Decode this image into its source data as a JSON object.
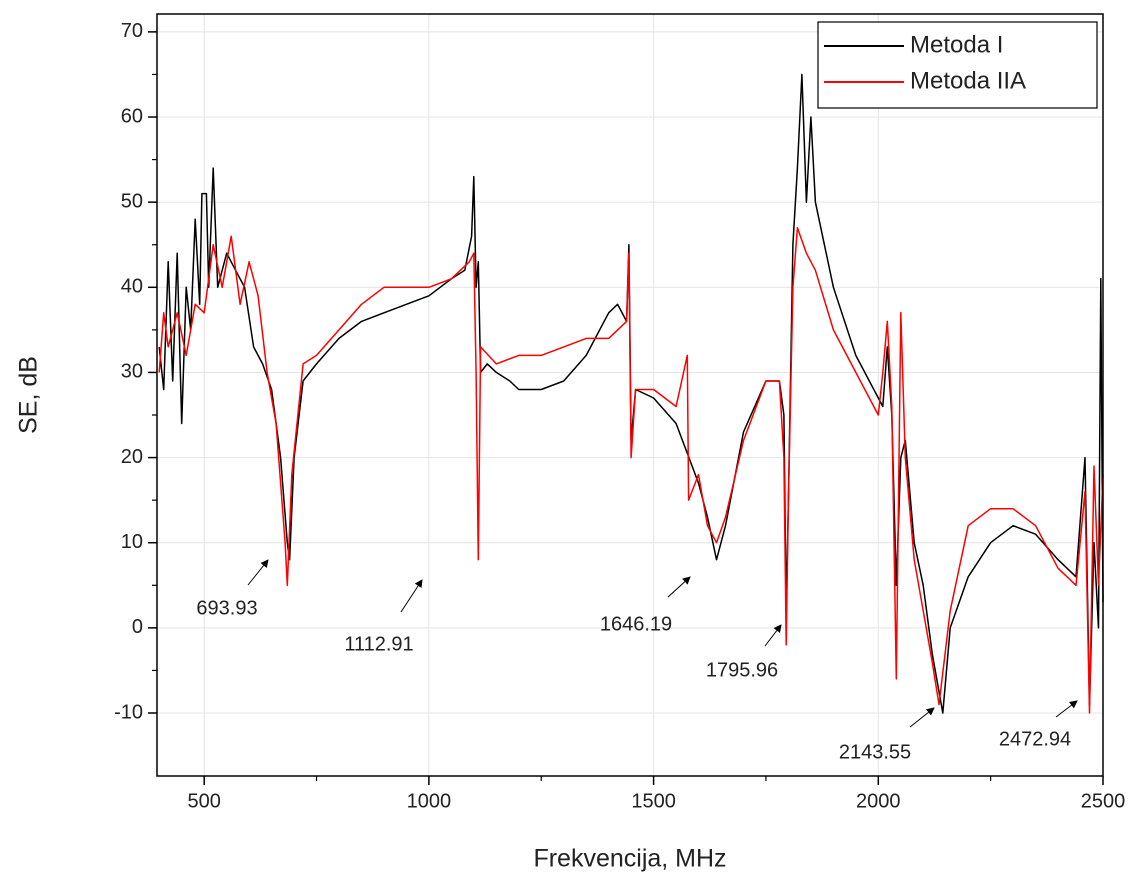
{
  "chart_data": {
    "type": "line",
    "x_label": "Frekvencija, MHz",
    "y_label": "SE, dB",
    "xlim": [
      395,
      2500
    ],
    "ylim": [
      -17.4,
      72.1
    ],
    "xticks": [
      500,
      1000,
      1500,
      2000,
      2500
    ],
    "yticks": [
      -10,
      0,
      10,
      20,
      30,
      40,
      50,
      60,
      70
    ],
    "grid": true,
    "legend": "upper right",
    "series": [
      {
        "name": "Metoda I",
        "color": "#000000",
        "x": [
          400,
          410,
          420,
          430,
          440,
          450,
          460,
          470,
          480,
          490,
          495,
          505,
          510,
          520,
          530,
          550,
          570,
          590,
          610,
          630,
          650,
          670,
          685,
          690,
          700,
          720,
          750,
          800,
          850,
          900,
          950,
          1000,
          1050,
          1080,
          1095,
          1100,
          1105,
          1110,
          1115,
          1130,
          1150,
          1180,
          1200,
          1250,
          1300,
          1350,
          1400,
          1420,
          1440,
          1445,
          1450,
          1460,
          1500,
          1550,
          1600,
          1620,
          1640,
          1660,
          1700,
          1750,
          1780,
          1790,
          1795,
          1800,
          1810,
          1820,
          1830,
          1840,
          1850,
          1860,
          1900,
          1950,
          2000,
          2010,
          2020,
          2030,
          2040,
          2050,
          2060,
          2080,
          2100,
          2120,
          2143.55,
          2160,
          2200,
          2250,
          2300,
          2350,
          2400,
          2440,
          2460,
          2470,
          2480,
          2490,
          2495,
          2500
        ],
        "values": [
          33,
          28,
          43,
          29,
          44,
          24,
          40,
          35,
          48,
          38,
          51,
          51,
          40,
          54,
          40,
          44,
          42,
          40,
          33,
          31,
          28,
          20,
          10,
          8,
          20,
          29,
          31,
          34,
          36,
          37,
          38,
          39,
          41,
          42,
          46,
          53,
          40,
          43,
          30,
          31,
          30,
          29,
          28,
          28,
          29,
          32,
          37,
          38,
          36,
          45,
          22,
          28,
          27,
          24,
          17,
          13,
          8,
          12,
          23,
          29,
          29,
          25,
          2,
          15,
          45,
          54,
          65,
          50,
          60,
          50,
          40,
          32,
          27,
          26,
          33,
          25,
          5,
          20,
          22,
          10,
          5,
          -3,
          -10,
          0,
          6,
          10,
          12,
          11,
          8,
          6,
          20,
          -9,
          10,
          0,
          41,
          3
        ]
      },
      {
        "name": "Metoda IIA",
        "color": "#ff0000",
        "x": [
          400,
          410,
          420,
          440,
          460,
          480,
          500,
          520,
          540,
          560,
          580,
          600,
          620,
          640,
          660,
          680,
          685,
          695,
          720,
          750,
          800,
          850,
          900,
          950,
          1000,
          1050,
          1090,
          1100,
          1105,
          1110,
          1115,
          1150,
          1200,
          1250,
          1300,
          1350,
          1400,
          1440,
          1445,
          1450,
          1460,
          1500,
          1550,
          1575,
          1578,
          1600,
          1620,
          1640,
          1660,
          1700,
          1750,
          1780,
          1790,
          1795,
          1800,
          1810,
          1820,
          1840,
          1860,
          1900,
          1950,
          2000,
          2010,
          2020,
          2030,
          2040,
          2050,
          2060,
          2080,
          2100,
          2120,
          2135,
          2160,
          2200,
          2250,
          2300,
          2350,
          2400,
          2440,
          2460,
          2470,
          2480,
          2490,
          2500
        ],
        "values": [
          30,
          37,
          33,
          37,
          32,
          38,
          37,
          45,
          40,
          46,
          38,
          43,
          39,
          30,
          24,
          10,
          5,
          18,
          31,
          32,
          35,
          38,
          40,
          40,
          40,
          41,
          43,
          44,
          30,
          8,
          33,
          31,
          32,
          32,
          33,
          34,
          34,
          36,
          44,
          20,
          28,
          28,
          26,
          32,
          15,
          18,
          12,
          10,
          13,
          22,
          29,
          29,
          20,
          -2,
          15,
          40,
          47,
          44,
          42,
          35,
          30,
          25,
          30,
          36,
          26,
          -6,
          37,
          20,
          8,
          2,
          -4,
          -9,
          2,
          12,
          14,
          14,
          12,
          7,
          5,
          16,
          -10,
          19,
          5,
          18
        ]
      }
    ],
    "annotations": [
      "693.93",
      "1112.91",
      "1646.19",
      "1795.96",
      "2143.55",
      "2472.94"
    ]
  }
}
